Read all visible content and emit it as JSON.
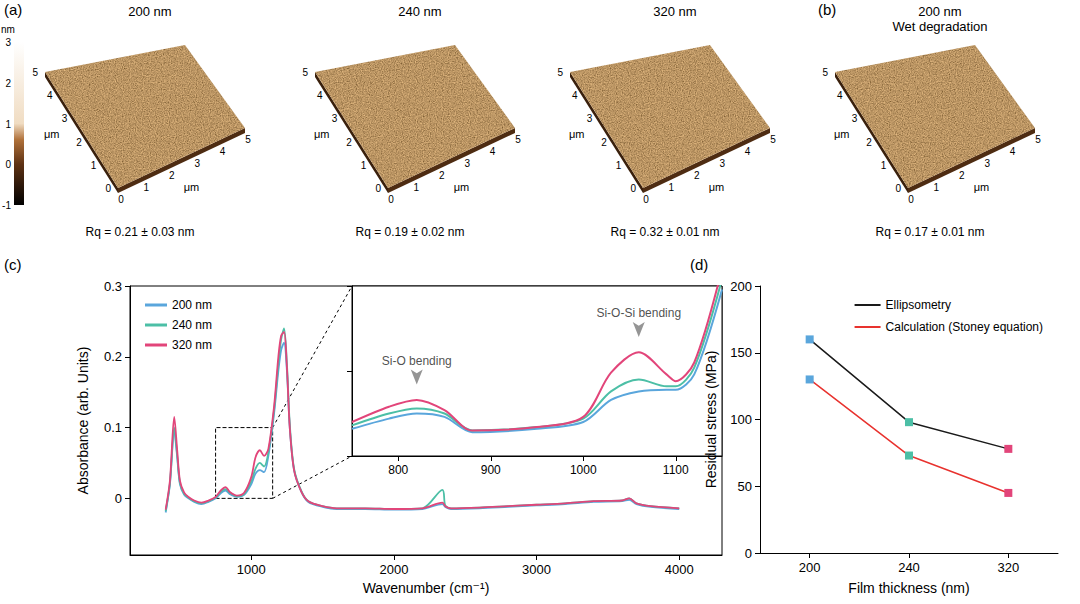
{
  "afm": {
    "colorbar": {
      "label": "nm",
      "lim": [
        -1,
        3
      ],
      "ticks": [
        -1,
        0,
        1,
        2,
        3
      ]
    },
    "axis": {
      "label": "μm",
      "lim": [
        0,
        5
      ],
      "ticks": [
        0,
        1,
        2,
        3,
        4,
        5
      ]
    },
    "groups": [
      {
        "letter": "(a)",
        "panels": [
          {
            "title": "200 nm",
            "rq": "Rq = 0.21 ± 0.03 nm"
          },
          {
            "title": "240 nm",
            "rq": "Rq = 0.19 ± 0.02 nm"
          },
          {
            "title": "320 nm",
            "rq": "Rq = 0.32 ± 0.01 nm"
          }
        ]
      },
      {
        "letter": "(b)",
        "panels": [
          {
            "title": "200 nm",
            "subtitle": "Wet degradation",
            "rq": "Rq = 0.17 ± 0.01 nm"
          }
        ]
      }
    ]
  },
  "chart_data": [
    {
      "letter": "(c)",
      "type": "line",
      "x_label": "Wavenumber (cm⁻¹)",
      "y_label": "Absorbance (arb. Units)",
      "xlim": [
        150,
        4300
      ],
      "xticks": [
        1000,
        2000,
        3000,
        4000
      ],
      "ylim": [
        -0.08,
        0.3
      ],
      "yticks": [
        0,
        0.1,
        0.2,
        0.3
      ],
      "legend": "upper left",
      "x": [
        400,
        430,
        460,
        480,
        500,
        530,
        560,
        600,
        650,
        700,
        750,
        790,
        820,
        850,
        900,
        950,
        1000,
        1030,
        1060,
        1090,
        1120,
        1160,
        1190,
        1210,
        1230,
        1250,
        1270,
        1300,
        1350,
        1400,
        1500,
        1600,
        1800,
        2000,
        2200,
        2340,
        2360,
        2400,
        2600,
        2800,
        3000,
        3200,
        3400,
        3600,
        3650,
        3700,
        3800,
        4000
      ],
      "series": [
        {
          "name": "200 nm",
          "color": "#5aa6dc",
          "values": [
            -0.02,
            0.02,
            0.095,
            0.06,
            0.02,
            0.005,
            0.0,
            -0.005,
            -0.008,
            -0.005,
            0.0,
            0.008,
            0.011,
            0.006,
            0.002,
            0.005,
            0.02,
            0.035,
            0.04,
            0.037,
            0.06,
            0.12,
            0.18,
            0.21,
            0.22,
            0.18,
            0.1,
            0.04,
            0.01,
            -0.005,
            -0.012,
            -0.015,
            -0.015,
            -0.016,
            -0.015,
            -0.008,
            -0.012,
            -0.015,
            -0.014,
            -0.012,
            -0.01,
            -0.008,
            -0.005,
            -0.004,
            -0.002,
            -0.008,
            -0.012,
            -0.015
          ]
        },
        {
          "name": "240 nm",
          "color": "#4cbfa6",
          "values": [
            -0.018,
            0.022,
            0.1,
            0.063,
            0.022,
            0.006,
            0.001,
            -0.004,
            -0.007,
            -0.004,
            0.001,
            0.01,
            0.013,
            0.008,
            0.003,
            0.006,
            0.024,
            0.042,
            0.05,
            0.045,
            0.065,
            0.125,
            0.19,
            0.225,
            0.24,
            0.19,
            0.105,
            0.042,
            0.011,
            -0.004,
            -0.011,
            -0.014,
            -0.014,
            -0.015,
            -0.014,
            0.012,
            -0.01,
            -0.014,
            -0.013,
            -0.011,
            -0.009,
            -0.007,
            -0.004,
            -0.003,
            0.0,
            -0.007,
            -0.011,
            -0.014
          ]
        },
        {
          "name": "320 nm",
          "color": "#e2457a",
          "values": [
            -0.016,
            0.025,
            0.115,
            0.07,
            0.025,
            0.008,
            0.002,
            -0.003,
            -0.006,
            -0.003,
            0.002,
            0.012,
            0.016,
            0.009,
            0.004,
            0.008,
            0.03,
            0.058,
            0.068,
            0.06,
            0.07,
            0.13,
            0.2,
            0.23,
            0.235,
            0.185,
            0.1,
            0.04,
            0.01,
            -0.004,
            -0.011,
            -0.014,
            -0.014,
            -0.015,
            -0.014,
            -0.006,
            -0.011,
            -0.014,
            -0.013,
            -0.011,
            -0.009,
            -0.007,
            -0.004,
            -0.003,
            0.0,
            -0.007,
            -0.011,
            -0.014
          ]
        }
      ],
      "inset": {
        "type": "line",
        "xlim": [
          750,
          1150
        ],
        "xticks": [
          800,
          900,
          1000,
          1100
        ],
        "ylim": [
          0,
          0.1
        ],
        "yticks": [
          0,
          0.05,
          0.1
        ],
        "tick_labels": "x",
        "x": [
          750,
          790,
          820,
          850,
          880,
          950,
          1000,
          1030,
          1060,
          1090,
          1100,
          1120,
          1150
        ],
        "series": [
          {
            "name": "200 nm",
            "color": "#5aa6dc",
            "values": [
              0.016,
              0.022,
              0.025,
              0.023,
              0.014,
              0.016,
              0.02,
              0.033,
              0.038,
              0.039,
              0.039,
              0.048,
              0.098
            ]
          },
          {
            "name": "240 nm",
            "color": "#4cbfa6",
            "values": [
              0.018,
              0.025,
              0.028,
              0.025,
              0.015,
              0.017,
              0.022,
              0.038,
              0.045,
              0.041,
              0.041,
              0.052,
              0.104
            ]
          },
          {
            "name": "320 nm",
            "color": "#e2457a",
            "values": [
              0.02,
              0.029,
              0.033,
              0.027,
              0.015,
              0.017,
              0.023,
              0.049,
              0.061,
              0.048,
              0.044,
              0.055,
              0.11
            ]
          }
        ],
        "annotations": [
          {
            "text": "Si-O bending",
            "x": 820,
            "y": 0.042
          },
          {
            "text": "Si-O-Si bending",
            "x": 1060,
            "y": 0.07
          }
        ]
      }
    },
    {
      "letter": "(d)",
      "type": "line",
      "x_label": "Film thickness (nm)",
      "y_label": "Residual stress (MPa)",
      "categories": [
        "200",
        "240",
        "320"
      ],
      "ylim": [
        0,
        200
      ],
      "yticks": [
        0,
        50,
        100,
        150,
        200
      ],
      "legend": "upper right",
      "series": [
        {
          "name": "Ellipsometry",
          "color": "#1a1a1a",
          "colors": [
            "#5aa6dc",
            "#4cbfa6",
            "#e2457a"
          ],
          "marker": "square",
          "line_style": "solid",
          "values": [
            160,
            98,
            78
          ]
        },
        {
          "name": "Calculation (Stoney equation)",
          "color": "#e8322e",
          "colors": [
            "#5aa6dc",
            "#4cbfa6",
            "#e2457a"
          ],
          "marker": "square",
          "line_style": "solid",
          "values": [
            130,
            73,
            45
          ]
        }
      ]
    }
  ]
}
